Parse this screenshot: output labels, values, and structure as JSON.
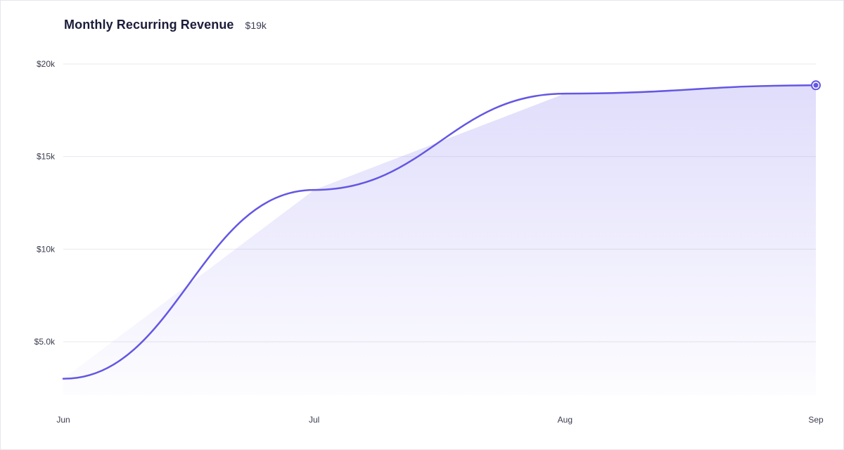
{
  "header": {
    "title": "Monthly Recurring Revenue",
    "summary_value": "$19k"
  },
  "colors": {
    "line": "#6457e3",
    "area": "#8f86f0",
    "marker": "#6457e3"
  },
  "chart_data": {
    "type": "area",
    "title": "Monthly Recurring Revenue",
    "x": [
      "Jun",
      "Jul",
      "Aug",
      "Sep"
    ],
    "series": [
      {
        "values": [
          3000,
          13200,
          18400,
          18850
        ]
      }
    ],
    "ylim": [
      2000,
      20000
    ],
    "yticks": [
      {
        "value": 5000,
        "label": "$5.0k"
      },
      {
        "value": 10000,
        "label": "$10k"
      },
      {
        "value": 15000,
        "label": "$15k"
      },
      {
        "value": 20000,
        "label": "$20k"
      }
    ],
    "grid": true,
    "legend": "none",
    "highlight_last_point": true
  }
}
